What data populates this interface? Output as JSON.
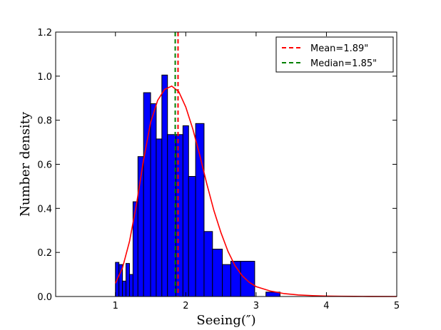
{
  "chart_data": {
    "type": "bar",
    "xlabel": "Seeing(″)",
    "ylabel": "Number density",
    "xlim": [
      0.15,
      5.0
    ],
    "ylim": [
      0.0,
      1.2
    ],
    "xticks": [
      1,
      2,
      3,
      4,
      5
    ],
    "yticks": [
      0.0,
      0.2,
      0.4,
      0.6,
      0.8,
      1.0,
      1.2
    ],
    "ytick_labels": [
      "0.0",
      "0.2",
      "0.4",
      "0.6",
      "0.8",
      "1.0",
      "1.2"
    ],
    "histogram": {
      "bin_width": 0.15,
      "bins": [
        {
          "x0": 1.0,
          "x1": 1.05,
          "y": 0.155
        },
        {
          "x0": 1.05,
          "x1": 1.1,
          "y": 0.145
        },
        {
          "x0": 1.1,
          "x1": 1.15,
          "y": 0.07
        },
        {
          "x0": 1.15,
          "x1": 1.2,
          "y": 0.15
        },
        {
          "x0": 1.2,
          "x1": 1.25,
          "y": 0.1
        },
        {
          "x0": 1.25,
          "x1": 1.32,
          "y": 0.43
        },
        {
          "x0": 1.32,
          "x1": 1.4,
          "y": 0.635
        },
        {
          "x0": 1.4,
          "x1": 1.5,
          "y": 0.925
        },
        {
          "x0": 1.5,
          "x1": 1.58,
          "y": 0.875
        },
        {
          "x0": 1.58,
          "x1": 1.66,
          "y": 0.715
        },
        {
          "x0": 1.66,
          "x1": 1.74,
          "y": 1.005
        },
        {
          "x0": 1.74,
          "x1": 1.86,
          "y": 0.735
        },
        {
          "x0": 1.86,
          "x1": 1.96,
          "y": 0.735
        },
        {
          "x0": 1.96,
          "x1": 2.04,
          "y": 0.775
        },
        {
          "x0": 2.04,
          "x1": 2.14,
          "y": 0.545
        },
        {
          "x0": 2.14,
          "x1": 2.26,
          "y": 0.785
        },
        {
          "x0": 2.26,
          "x1": 2.38,
          "y": 0.295
        },
        {
          "x0": 2.38,
          "x1": 2.52,
          "y": 0.215
        },
        {
          "x0": 2.52,
          "x1": 2.64,
          "y": 0.145
        },
        {
          "x0": 2.64,
          "x1": 2.78,
          "y": 0.16
        },
        {
          "x0": 2.78,
          "x1": 2.98,
          "y": 0.16
        },
        {
          "x0": 3.14,
          "x1": 3.34,
          "y": 0.02
        }
      ],
      "color": "#0000ff"
    },
    "series": [
      {
        "name": "",
        "type": "line",
        "color": "#ff0000",
        "x": [
          1.0,
          1.1,
          1.2,
          1.3,
          1.4,
          1.5,
          1.6,
          1.7,
          1.8,
          1.9,
          2.0,
          2.1,
          2.2,
          2.3,
          2.4,
          2.5,
          2.6,
          2.7,
          2.8,
          2.9,
          3.0,
          3.2,
          3.4,
          3.6,
          3.8,
          4.0,
          4.2,
          4.4,
          4.6,
          5.0
        ],
        "y": [
          0.06,
          0.13,
          0.25,
          0.42,
          0.62,
          0.79,
          0.89,
          0.94,
          0.955,
          0.93,
          0.86,
          0.76,
          0.64,
          0.51,
          0.39,
          0.29,
          0.205,
          0.14,
          0.095,
          0.065,
          0.045,
          0.025,
          0.013,
          0.007,
          0.004,
          0.002,
          0.001,
          0.0006,
          0.0003,
          0.0
        ]
      }
    ],
    "reference_lines": [
      {
        "name": "Mean=1.89\"",
        "x": 1.89,
        "color": "#ff0000",
        "style": "dashed"
      },
      {
        "name": "Median=1.85\"",
        "x": 1.85,
        "color": "#008000",
        "style": "dashed"
      }
    ],
    "legend": {
      "placement": "top-right",
      "entries": [
        {
          "label": "Mean=1.89\"",
          "color": "#ff0000"
        },
        {
          "label": "Median=1.85\"",
          "color": "#008000"
        }
      ]
    },
    "grid": false
  }
}
